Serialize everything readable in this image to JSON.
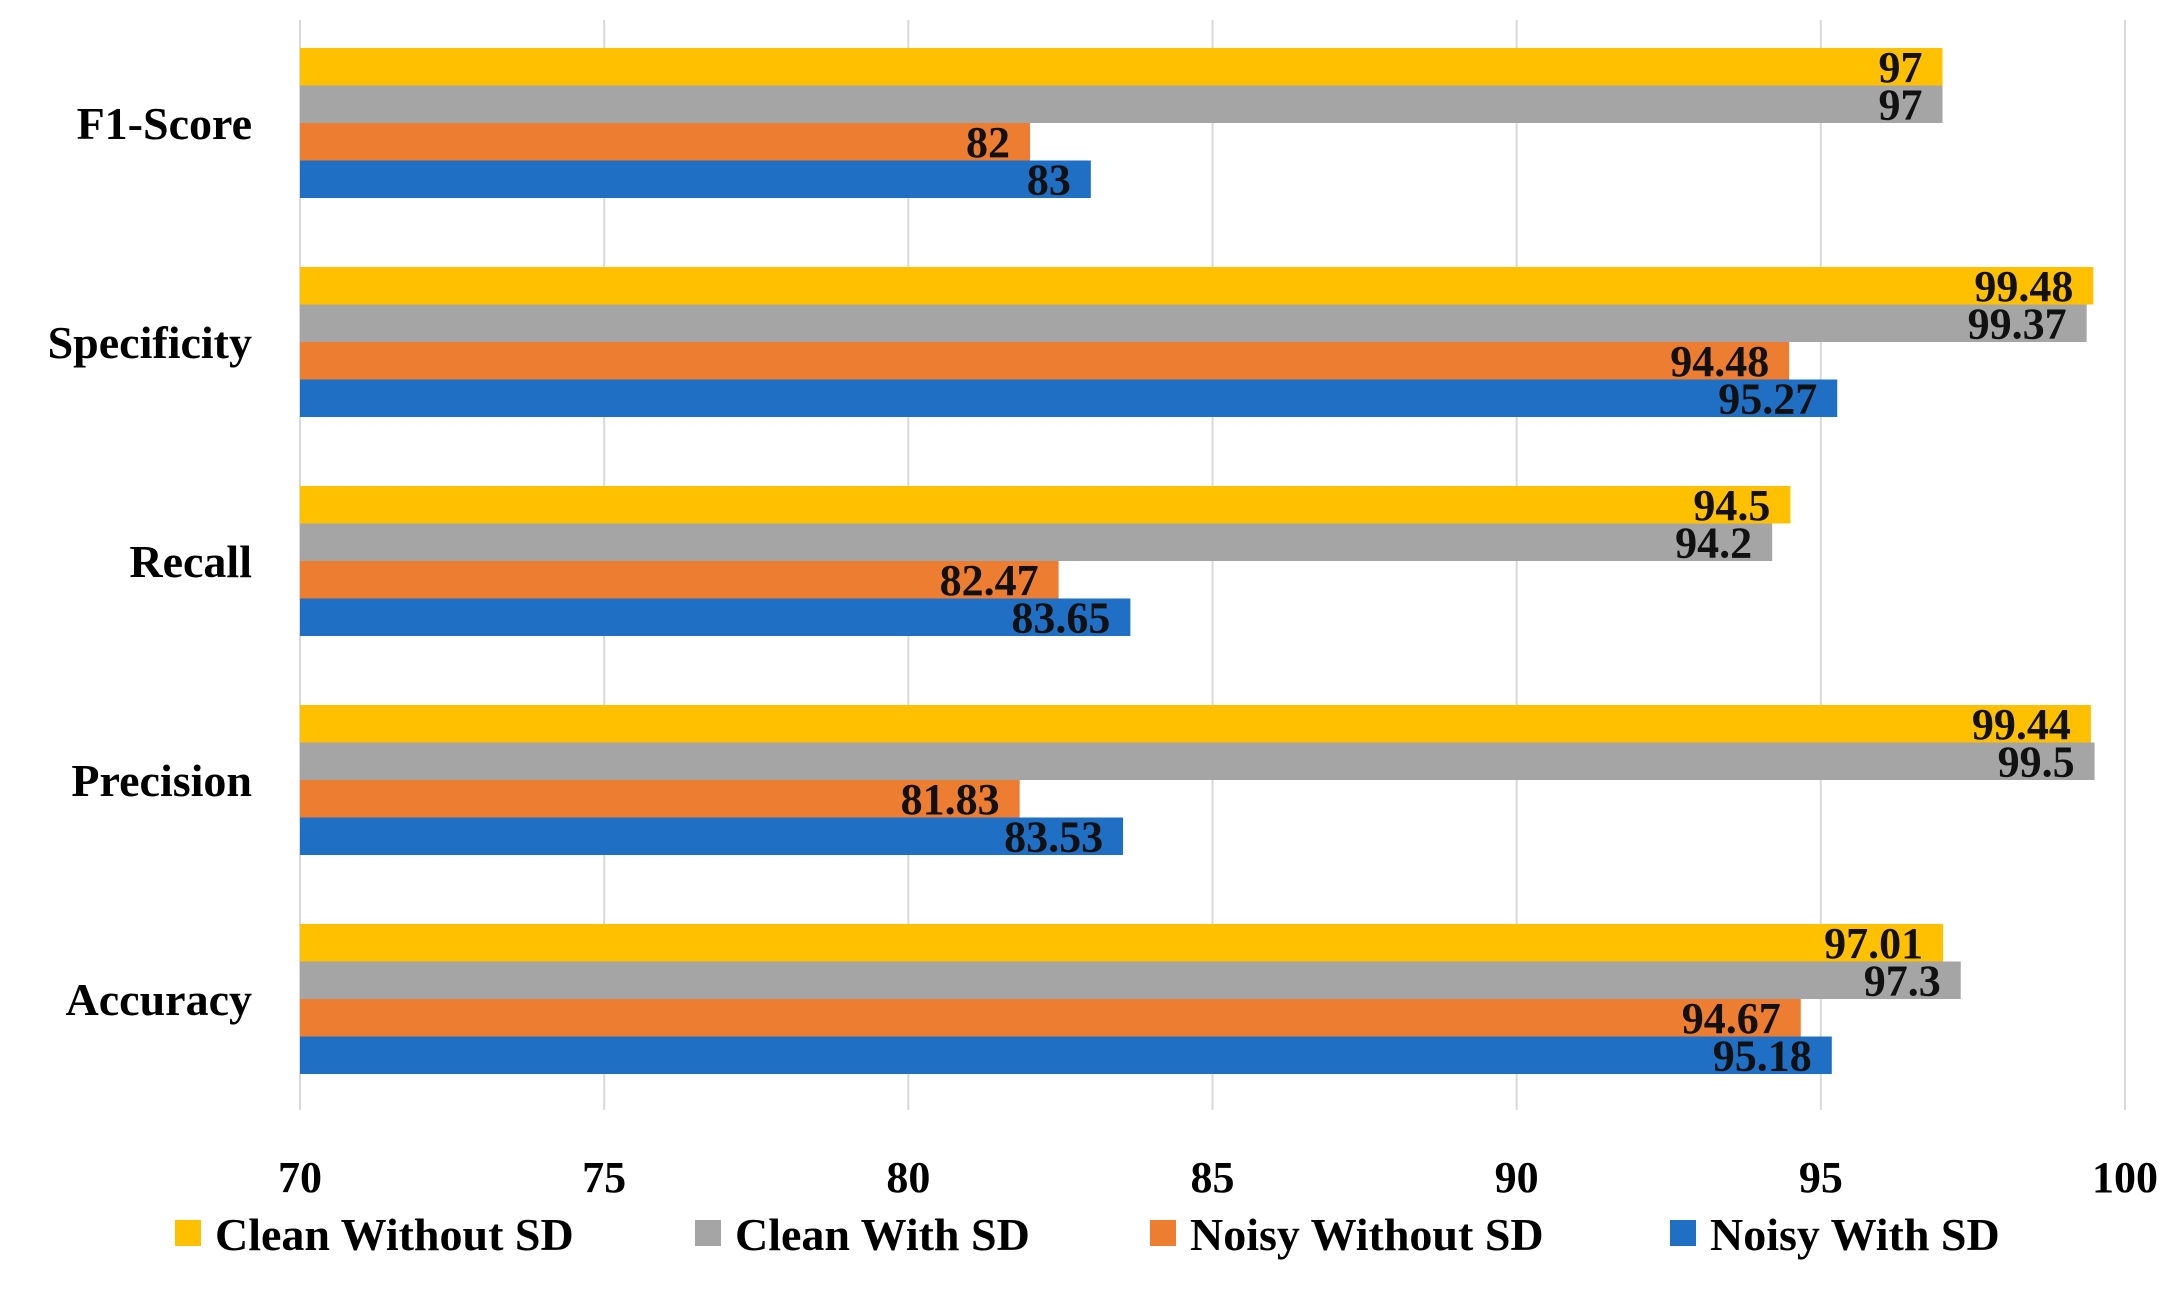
{
  "chart_data": {
    "type": "bar",
    "orientation": "horizontal",
    "title": "",
    "xlabel": "",
    "ylabel": "",
    "xlim": [
      70,
      100
    ],
    "x_ticks": [
      70,
      75,
      80,
      85,
      90,
      95,
      100
    ],
    "grid": true,
    "legend_position": "bottom",
    "categories": [
      "F1-Score",
      "Specificity",
      "Recall",
      "Precision",
      "Accuracy"
    ],
    "series": [
      {
        "name": "Clean Without SD",
        "color": "#FFC000",
        "values": [
          97,
          99.48,
          94.5,
          99.44,
          97.01
        ],
        "labels": [
          "97",
          "99.48",
          "94.5",
          "99.44",
          "97.01"
        ]
      },
      {
        "name": "Clean With SD",
        "color": "#A5A5A5",
        "values": [
          97,
          99.37,
          94.2,
          99.5,
          97.3
        ],
        "labels": [
          "97",
          "99.37",
          "94.2",
          "99.5",
          "97.3"
        ]
      },
      {
        "name": "Noisy Without SD",
        "color": "#ED7D31",
        "values": [
          82,
          94.48,
          82.47,
          81.83,
          94.67
        ],
        "labels": [
          "82",
          "94.48",
          "82.47",
          "81.83",
          "94.67"
        ]
      },
      {
        "name": "Noisy With SD",
        "color": "#1F6FC5",
        "values": [
          83,
          95.27,
          83.65,
          83.53,
          95.18
        ],
        "labels": [
          "83",
          "95.27",
          "83.65",
          "83.53",
          "95.18"
        ]
      }
    ]
  }
}
